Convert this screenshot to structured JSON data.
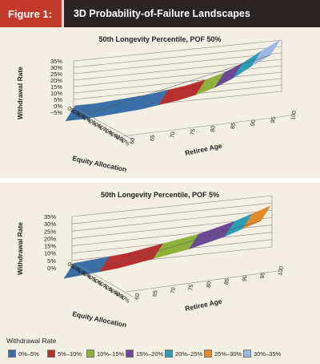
{
  "figure": {
    "label": "Figure 1:",
    "title": "3D Probability-of-Failure Landscapes"
  },
  "chart_data": [
    {
      "type": "surface",
      "title": "50th Longevity Percentile, POF 50%",
      "zlabel": "Withdrawal Rate",
      "xlabel": "Retiree Age",
      "ylabel": "Equity Allocation",
      "z_ticks": [
        "35%",
        "30%",
        "25%",
        "20%",
        "15%",
        "10%",
        "5%",
        "0%",
        "−5%"
      ],
      "x_ticks": [
        "60",
        "65",
        "70",
        "75",
        "80",
        "85",
        "90",
        "95",
        "100"
      ],
      "y_ticks": [
        "0%",
        "10%",
        "20%",
        "30%",
        "40%",
        "50%",
        "60%",
        "70%",
        "80%",
        "90%",
        "100%"
      ],
      "zlim": [
        -5,
        35
      ],
      "surface_levels": [
        0,
        0,
        1,
        2,
        3,
        5,
        7,
        10,
        14,
        20,
        28,
        35
      ]
    },
    {
      "type": "surface",
      "title": "50th Longevity Percentile, POF 5%",
      "zlabel": "Withdrawal Rate",
      "xlabel": "Retiree Age",
      "ylabel": "Equity Allocation",
      "z_ticks": [
        "35%",
        "30%",
        "25%",
        "20%",
        "15%",
        "10%",
        "5%",
        "0%"
      ],
      "x_ticks": [
        "60",
        "65",
        "70",
        "75",
        "80",
        "85",
        "90",
        "95",
        "100"
      ],
      "y_ticks": [
        "0%",
        "10%",
        "20%",
        "30%",
        "40%",
        "50%",
        "60%",
        "70%",
        "80%",
        "90%",
        "100%"
      ],
      "zlim": [
        0,
        35
      ],
      "surface_levels": [
        3,
        4,
        5,
        6,
        8,
        10,
        12,
        14,
        17,
        20,
        24,
        28
      ]
    }
  ],
  "legend": {
    "title": "Withdrawal Rate",
    "items": [
      {
        "label": "0%–5%",
        "color": "#3a6fa8"
      },
      {
        "label": "5%–10%",
        "color": "#b5302f"
      },
      {
        "label": "10%–15%",
        "color": "#8fb03a"
      },
      {
        "label": "15%–20%",
        "color": "#6b4a93"
      },
      {
        "label": "20%–25%",
        "color": "#2a9db5"
      },
      {
        "label": "25%–30%",
        "color": "#e08a2a"
      },
      {
        "label": "30%–35%",
        "color": "#9db8e0"
      }
    ]
  }
}
